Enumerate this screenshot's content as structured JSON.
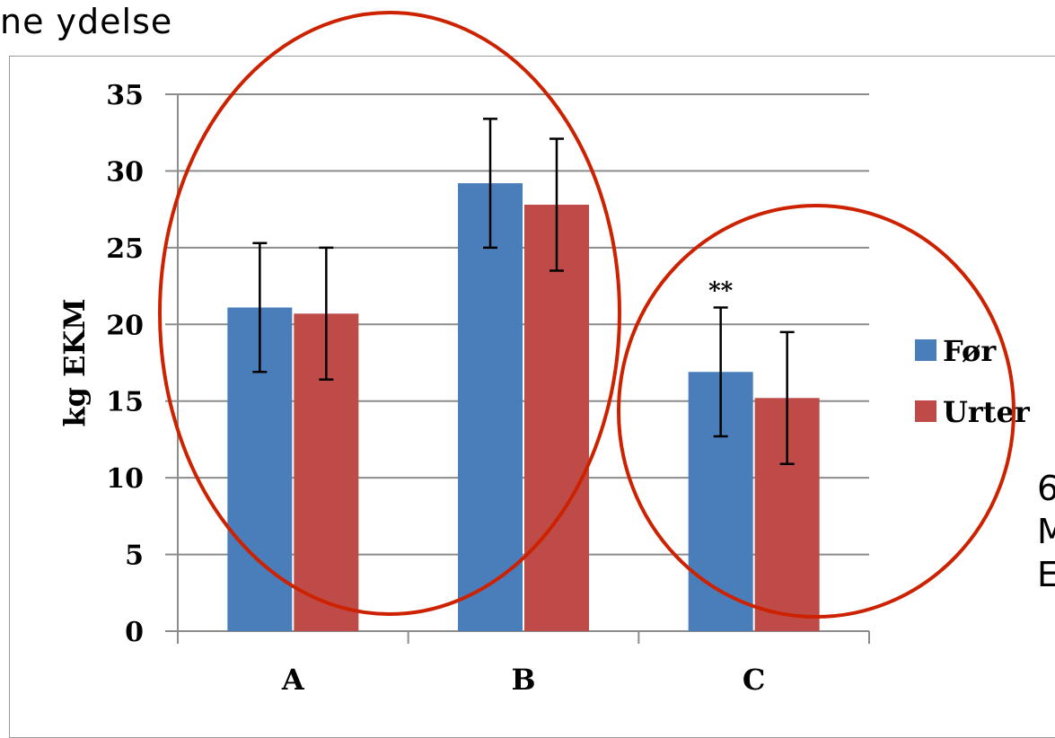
{
  "heading_fragment": "ne ydelse",
  "side_text_fragment": [
    "6",
    "M",
    "E"
  ],
  "chart_data": {
    "type": "bar",
    "categories": [
      "A",
      "B",
      "C"
    ],
    "series": [
      {
        "name": "Før",
        "color": "#4a7ebb",
        "values": [
          21.1,
          29.2,
          16.9
        ],
        "errors": [
          4.2,
          4.2,
          4.2
        ]
      },
      {
        "name": "Urter",
        "color": "#be4b48",
        "values": [
          20.7,
          27.8,
          15.2
        ],
        "errors": [
          4.3,
          4.3,
          4.3
        ]
      }
    ],
    "ylabel": "kg EKM",
    "xlabel": "",
    "ylim": [
      0,
      35
    ],
    "yticks": [
      0,
      5,
      10,
      15,
      20,
      25,
      30,
      35
    ],
    "grid": true,
    "legend_position": "right",
    "annotations": [
      {
        "text": "**",
        "category": "C"
      }
    ],
    "highlight_ellipse_color": "#cc2200"
  }
}
